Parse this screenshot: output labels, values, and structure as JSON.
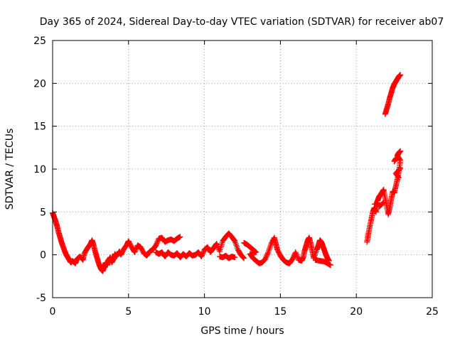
{
  "chart_data": {
    "type": "scatter",
    "title": "Day 365 of 2024, Sidereal Day-to-day VTEC variation (SDTVAR) for receiver ab07",
    "xlabel": "GPS time / hours",
    "ylabel": "SDTVAR / TECUs",
    "xlim": [
      0,
      25
    ],
    "ylim": [
      -5,
      25
    ],
    "x_ticks": [
      "0",
      "5",
      "10",
      "15",
      "20",
      "25"
    ],
    "y_ticks": [
      "-5",
      "0",
      "5",
      "10",
      "15",
      "20",
      "25"
    ],
    "grid": true,
    "grid_style": "dotted",
    "marker": "+",
    "series_color": "#ff0000",
    "series": [
      {
        "points": [
          [
            0.0,
            4.9
          ],
          [
            0.1,
            4.4
          ],
          [
            0.2,
            3.9
          ],
          [
            0.3,
            3.3
          ],
          [
            0.4,
            2.6
          ],
          [
            0.5,
            2.0
          ],
          [
            0.6,
            1.4
          ],
          [
            0.7,
            0.9
          ],
          [
            0.8,
            0.4
          ],
          [
            0.9,
            0.0
          ],
          [
            1.0,
            -0.3
          ],
          [
            1.1,
            -0.6
          ],
          [
            1.2,
            -0.9
          ],
          [
            1.3,
            -0.7
          ],
          [
            1.5,
            -1.0
          ],
          [
            1.6,
            -0.5
          ],
          [
            1.8,
            -0.2
          ],
          [
            2.0,
            -0.6
          ],
          [
            2.1,
            0.2
          ],
          [
            2.3,
            0.8
          ],
          [
            2.5,
            1.3
          ],
          [
            2.6,
            1.7
          ],
          [
            2.7,
            1.1
          ],
          [
            2.8,
            0.4
          ],
          [
            2.9,
            -0.2
          ],
          [
            3.0,
            -0.8
          ],
          [
            3.1,
            -1.3
          ],
          [
            3.2,
            -1.7
          ],
          [
            3.3,
            -1.9
          ],
          [
            3.4,
            -1.4
          ],
          [
            3.5,
            -0.9
          ],
          [
            3.6,
            -1.2
          ],
          [
            3.7,
            -0.6
          ],
          [
            3.8,
            -0.3
          ],
          [
            3.9,
            -0.9
          ],
          [
            4.0,
            -0.5
          ],
          [
            4.1,
            0.1
          ],
          [
            4.2,
            -0.2
          ],
          [
            4.4,
            0.4
          ],
          [
            4.5,
            0.0
          ],
          [
            4.7,
            0.7
          ],
          [
            4.9,
            1.2
          ],
          [
            5.0,
            1.6
          ],
          [
            5.2,
            0.9
          ],
          [
            5.4,
            0.3
          ],
          [
            5.6,
            1.1
          ],
          [
            5.8,
            0.9
          ],
          [
            6.0,
            0.2
          ],
          [
            6.2,
            -0.1
          ],
          [
            6.4,
            0.4
          ],
          [
            6.6,
            0.6
          ],
          [
            6.8,
            1.1
          ],
          [
            7.0,
            1.9
          ],
          [
            7.2,
            2.0
          ],
          [
            7.4,
            1.5
          ],
          [
            7.6,
            1.7
          ],
          [
            7.8,
            1.8
          ],
          [
            8.0,
            1.6
          ],
          [
            8.2,
            1.9
          ],
          [
            8.4,
            2.1
          ],
          [
            6.8,
            0.3
          ],
          [
            7.0,
            0.1
          ],
          [
            7.2,
            0.3
          ],
          [
            7.4,
            -0.2
          ],
          [
            7.6,
            0.3
          ],
          [
            7.8,
            0.0
          ],
          [
            8.0,
            -0.1
          ],
          [
            8.2,
            0.2
          ],
          [
            8.4,
            -0.3
          ],
          [
            8.6,
            0.1
          ],
          [
            8.8,
            -0.2
          ],
          [
            9.0,
            0.2
          ],
          [
            9.2,
            -0.1
          ],
          [
            9.4,
            0.0
          ],
          [
            9.6,
            0.3
          ],
          [
            9.8,
            -0.2
          ],
          [
            10.0,
            0.6
          ],
          [
            10.2,
            0.9
          ],
          [
            10.4,
            0.3
          ],
          [
            10.6,
            0.8
          ],
          [
            10.8,
            1.3
          ],
          [
            11.0,
            0.4
          ],
          [
            11.2,
            1.6
          ],
          [
            11.4,
            2.1
          ],
          [
            11.6,
            2.5
          ],
          [
            11.8,
            2.1
          ],
          [
            12.0,
            1.6
          ],
          [
            12.2,
            0.6
          ],
          [
            12.4,
            0.0
          ],
          [
            12.6,
            -0.4
          ],
          [
            11.0,
            -0.2
          ],
          [
            11.2,
            -0.3
          ],
          [
            11.4,
            -0.1
          ],
          [
            11.6,
            -0.4
          ],
          [
            11.8,
            -0.2
          ],
          [
            12.0,
            -0.3
          ],
          [
            12.6,
            1.4
          ],
          [
            12.8,
            1.2
          ],
          [
            13.0,
            0.9
          ],
          [
            13.2,
            0.6
          ],
          [
            13.4,
            0.3
          ],
          [
            13.0,
            0.1
          ],
          [
            13.2,
            -0.4
          ],
          [
            13.4,
            -0.7
          ],
          [
            13.6,
            -1.0
          ],
          [
            13.8,
            -0.9
          ],
          [
            14.0,
            -0.5
          ],
          [
            14.2,
            0.3
          ],
          [
            14.4,
            1.3
          ],
          [
            14.6,
            2.0
          ],
          [
            14.7,
            1.3
          ],
          [
            14.8,
            0.6
          ],
          [
            15.0,
            -0.1
          ],
          [
            15.2,
            -0.6
          ],
          [
            15.4,
            -0.9
          ],
          [
            15.6,
            -1.0
          ],
          [
            15.8,
            -0.5
          ],
          [
            16.0,
            0.3
          ],
          [
            16.2,
            -0.6
          ],
          [
            16.4,
            -0.7
          ],
          [
            16.5,
            -0.3
          ],
          [
            16.6,
            0.5
          ],
          [
            16.7,
            1.1
          ],
          [
            16.8,
            1.7
          ],
          [
            16.9,
            2.0
          ],
          [
            17.0,
            1.3
          ],
          [
            17.1,
            0.4
          ],
          [
            17.2,
            -0.4
          ],
          [
            17.4,
            0.6
          ],
          [
            17.5,
            1.1
          ],
          [
            17.6,
            1.7
          ],
          [
            17.7,
            1.5
          ],
          [
            17.8,
            1.0
          ],
          [
            17.9,
            0.5
          ],
          [
            18.0,
            0.0
          ],
          [
            18.1,
            -0.4
          ],
          [
            18.2,
            -0.7
          ],
          [
            17.3,
            -0.6
          ],
          [
            17.6,
            -0.7
          ],
          [
            17.9,
            -0.8
          ],
          [
            18.2,
            -1.1
          ],
          [
            18.3,
            -1.2
          ],
          [
            20.7,
            1.5
          ],
          [
            20.8,
            2.5
          ],
          [
            20.9,
            3.4
          ],
          [
            21.0,
            4.3
          ],
          [
            21.1,
            5.1
          ],
          [
            21.2,
            5.5
          ],
          [
            21.3,
            5.0
          ],
          [
            21.4,
            6.3
          ],
          [
            21.5,
            6.8
          ],
          [
            21.6,
            7.0
          ],
          [
            21.7,
            7.3
          ],
          [
            21.8,
            7.6
          ],
          [
            21.9,
            6.6
          ],
          [
            22.0,
            5.7
          ],
          [
            22.1,
            4.7
          ],
          [
            22.2,
            5.5
          ],
          [
            22.3,
            6.5
          ],
          [
            22.4,
            7.4
          ],
          [
            22.5,
            7.2
          ],
          [
            22.6,
            8.0
          ],
          [
            22.7,
            8.8
          ],
          [
            22.8,
            9.8
          ],
          [
            22.9,
            11.0
          ],
          [
            22.7,
            11.6
          ],
          [
            22.8,
            11.9
          ],
          [
            22.9,
            12.1
          ],
          [
            22.5,
            10.9
          ],
          [
            22.6,
            11.2
          ],
          [
            21.5,
            5.6
          ],
          [
            21.8,
            6.1
          ],
          [
            21.2,
            5.9
          ],
          [
            21.4,
            6.0
          ],
          [
            22.9,
            10.1
          ],
          [
            22.6,
            9.5
          ],
          [
            22.8,
            9.0
          ],
          [
            21.9,
            16.4
          ],
          [
            22.0,
            17.0
          ],
          [
            22.1,
            17.6
          ],
          [
            22.2,
            18.3
          ],
          [
            22.3,
            18.9
          ],
          [
            22.4,
            19.5
          ],
          [
            22.5,
            19.9
          ],
          [
            22.6,
            20.2
          ],
          [
            22.7,
            20.5
          ],
          [
            22.8,
            20.8
          ],
          [
            22.9,
            21.0
          ]
        ]
      }
    ]
  }
}
